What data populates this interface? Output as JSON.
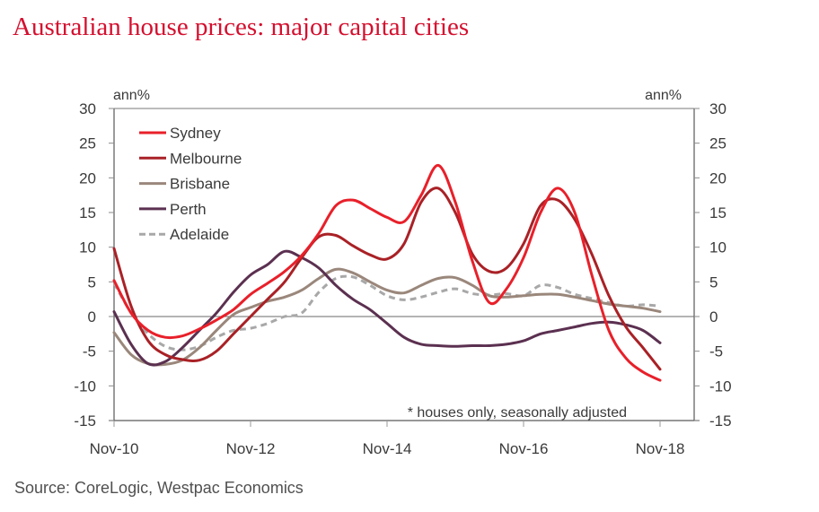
{
  "title": "Australian house prices: major capital cities",
  "source": "Source: CoreLogic, Westpac Economics",
  "chart_data": {
    "type": "line",
    "title": "Australian house prices: major capital cities",
    "ylabel_left": "ann%",
    "ylabel_right": "ann%",
    "ylim": [
      -15,
      30
    ],
    "yticks": [
      -15,
      -10,
      -5,
      0,
      5,
      10,
      15,
      20,
      25,
      30
    ],
    "ytick_labels": [
      "-15",
      "-10",
      "-5",
      "0",
      "5",
      "10",
      "15",
      "20",
      "25",
      "30"
    ],
    "xlim_months": [
      0,
      102
    ],
    "xticks": [
      0,
      24,
      48,
      72,
      96
    ],
    "xtick_labels": [
      "Nov-10",
      "Nov-12",
      "Nov-14",
      "Nov-16",
      "Nov-18"
    ],
    "x_unit": "months since Nov-10",
    "grid": false,
    "legend_position": "top-left",
    "annotation": "* houses only, seasonally adjusted",
    "x": [
      0,
      3,
      6,
      9,
      12,
      15,
      18,
      21,
      24,
      27,
      30,
      33,
      36,
      39,
      42,
      45,
      48,
      51,
      54,
      57,
      60,
      63,
      66,
      69,
      72,
      75,
      78,
      81,
      84,
      87,
      90,
      93,
      96
    ],
    "series": [
      {
        "name": "Sydney",
        "color": "#e8202a",
        "dash": false,
        "values": [
          5.2,
          0.5,
          -2.0,
          -3.0,
          -2.8,
          -1.8,
          -0.5,
          1.0,
          3.2,
          4.8,
          6.5,
          8.8,
          12.0,
          16.0,
          16.8,
          15.6,
          14.3,
          13.7,
          17.5,
          21.8,
          16.5,
          8.0,
          2.0,
          4.0,
          8.5,
          15.0,
          18.5,
          15.0,
          6.0,
          -2.0,
          -6.0,
          -8.0,
          -9.2
        ]
      },
      {
        "name": "Melbourne",
        "color": "#a92126",
        "dash": false,
        "values": [
          9.8,
          1.5,
          -3.5,
          -5.5,
          -6.2,
          -6.3,
          -5.0,
          -2.5,
          0.0,
          2.5,
          5.0,
          8.5,
          11.5,
          11.7,
          10.2,
          8.9,
          8.3,
          10.5,
          16.5,
          18.5,
          15.0,
          9.0,
          6.5,
          7.0,
          10.5,
          16.0,
          16.8,
          14.0,
          9.0,
          3.0,
          -1.5,
          -4.5,
          -7.6
        ]
      },
      {
        "name": "Brisbane",
        "color": "#9a877b",
        "dash": false,
        "values": [
          -2.3,
          -5.5,
          -6.8,
          -6.9,
          -6.3,
          -4.5,
          -2.0,
          0.3,
          1.3,
          2.2,
          2.8,
          3.8,
          5.5,
          6.8,
          6.3,
          5.0,
          3.8,
          3.4,
          4.5,
          5.5,
          5.6,
          4.5,
          3.0,
          2.8,
          3.0,
          3.2,
          3.2,
          2.8,
          2.3,
          1.8,
          1.5,
          1.2,
          0.7
        ]
      },
      {
        "name": "Perth",
        "color": "#5b3050",
        "dash": false,
        "values": [
          0.7,
          -4.0,
          -6.8,
          -6.5,
          -4.5,
          -2.0,
          0.5,
          3.5,
          6.0,
          7.5,
          9.4,
          8.5,
          7.0,
          4.5,
          2.5,
          1.0,
          -1.0,
          -3.0,
          -4.0,
          -4.2,
          -4.3,
          -4.2,
          -4.2,
          -4.0,
          -3.5,
          -2.5,
          -2.0,
          -1.5,
          -1.0,
          -0.8,
          -1.2,
          -2.0,
          -3.8
        ]
      },
      {
        "name": "Adelaide",
        "color": "#a8a8a8",
        "dash": true,
        "values": [
          4.8,
          0.5,
          -2.5,
          -4.3,
          -4.8,
          -4.3,
          -3.0,
          -2.0,
          -1.7,
          -1.0,
          0.0,
          0.5,
          3.5,
          5.5,
          5.7,
          4.5,
          3.0,
          2.4,
          2.8,
          3.5,
          4.0,
          3.3,
          3.1,
          3.3,
          3.0,
          4.5,
          4.2,
          3.2,
          2.6,
          2.0,
          1.5,
          1.7,
          1.5
        ]
      }
    ]
  }
}
